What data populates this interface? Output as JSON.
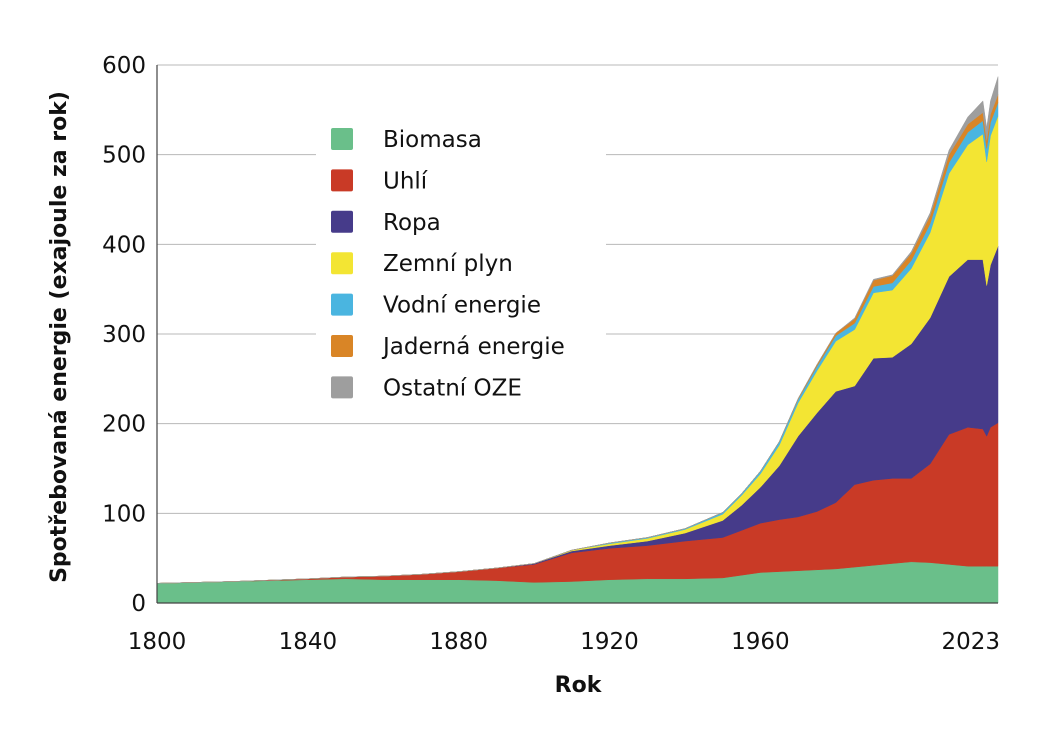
{
  "chart_data": {
    "type": "area",
    "stacked": true,
    "xlabel": "Rok",
    "ylabel": "Spotřebovaná energie (exajoule za rok)",
    "xlim": [
      1800,
      2023
    ],
    "ylim": [
      0,
      600
    ],
    "x_ticks": [
      {
        "value": 1800,
        "label": "1800"
      },
      {
        "value": 1840,
        "label": "1840"
      },
      {
        "value": 1880,
        "label": "1880"
      },
      {
        "value": 1920,
        "label": "1920"
      },
      {
        "value": 1960,
        "label": "1960"
      },
      {
        "value": 2023,
        "label": "2023"
      }
    ],
    "y_ticks": [
      {
        "value": 0,
        "label": "0"
      },
      {
        "value": 100,
        "label": "100"
      },
      {
        "value": 200,
        "label": "200"
      },
      {
        "value": 300,
        "label": "300"
      },
      {
        "value": 400,
        "label": "400"
      },
      {
        "value": 500,
        "label": "500"
      },
      {
        "value": 600,
        "label": "600"
      }
    ],
    "grid": "horizontal",
    "legend_position": "upper-left",
    "x": [
      1800,
      1820,
      1840,
      1850,
      1860,
      1870,
      1880,
      1890,
      1900,
      1910,
      1920,
      1930,
      1940,
      1950,
      1955,
      1960,
      1965,
      1970,
      1975,
      1980,
      1985,
      1990,
      1995,
      2000,
      2005,
      2010,
      2015,
      2019,
      2020,
      2021,
      2023
    ],
    "series": [
      {
        "name": "Biomasa",
        "color": "#6abf8a",
        "values": [
          22,
          24,
          26,
          27,
          26,
          26,
          26,
          25,
          23,
          24,
          26,
          27,
          27,
          28,
          31,
          34,
          35,
          36,
          37,
          38,
          40,
          42,
          44,
          46,
          45,
          43,
          41,
          41,
          41,
          41,
          41
        ]
      },
      {
        "name": "Uhlí",
        "color": "#c93a26",
        "values": [
          0,
          0,
          1,
          2,
          4,
          6,
          9,
          14,
          20,
          32,
          35,
          37,
          42,
          45,
          50,
          55,
          58,
          60,
          65,
          74,
          92,
          95,
          95,
          93,
          110,
          145,
          155,
          153,
          145,
          155,
          160
        ]
      },
      {
        "name": "Ropa",
        "color": "#463b8a",
        "values": [
          0,
          0,
          0,
          0,
          0,
          0,
          0,
          0,
          1,
          2,
          3,
          5,
          9,
          19,
          28,
          40,
          60,
          90,
          110,
          124,
          110,
          136,
          135,
          150,
          163,
          176,
          187,
          189,
          168,
          181,
          197
        ]
      },
      {
        "name": "Zemní plyn",
        "color": "#f3e533",
        "values": [
          0,
          0,
          0,
          0,
          0,
          0,
          0,
          0,
          0,
          1,
          2,
          3,
          4,
          7,
          11,
          15,
          23,
          37,
          47,
          56,
          63,
          73,
          75,
          84,
          95,
          115,
          128,
          140,
          138,
          144,
          145
        ]
      },
      {
        "name": "Vodní energie",
        "color": "#4ab5e0",
        "values": [
          0,
          0,
          0,
          0,
          0,
          0,
          0,
          0,
          0,
          0,
          1,
          1,
          1,
          2,
          2,
          3,
          4,
          4,
          5,
          6,
          7,
          7,
          8,
          9,
          10,
          12,
          14,
          15,
          15,
          15,
          15
        ]
      },
      {
        "name": "Jaderná energie",
        "color": "#d98526",
        "values": [
          0,
          0,
          0,
          0,
          0,
          0,
          0,
          0,
          0,
          0,
          0,
          0,
          0,
          0,
          0,
          0,
          0,
          1,
          2,
          3,
          5,
          7,
          8,
          8,
          9,
          9,
          9,
          9,
          9,
          9,
          9
        ]
      },
      {
        "name": "Ostatní OZE",
        "color": "#9e9e9e",
        "values": [
          0,
          0,
          0,
          0,
          0,
          0,
          0,
          0,
          0,
          0,
          0,
          0,
          0,
          0,
          0,
          0,
          0,
          0,
          0,
          0,
          1,
          1,
          1,
          2,
          3,
          5,
          8,
          13,
          14,
          15,
          20
        ]
      }
    ]
  }
}
